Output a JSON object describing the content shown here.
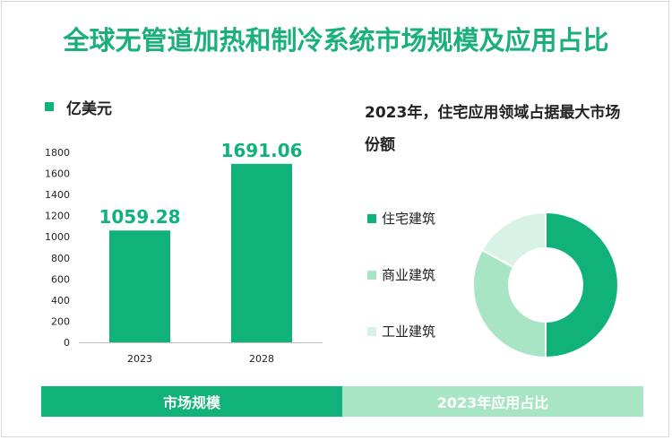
{
  "title": "全球无管道加热和制冷系统市场规模及应用占比",
  "unit_label": "亿美元",
  "pie_title": "2023年，住宅应用领域占据最大市场份额",
  "bottom_left_label": "市场规模",
  "bottom_right_label": "2023年应用占比",
  "colors": {
    "title": "#1bb07a",
    "bar": "#10b27a",
    "value_label": "#10b27a",
    "bottom_left": "#10b27a",
    "bottom_right": "#a8e5c4"
  },
  "chart_data": [
    {
      "type": "bar",
      "title": "",
      "ylabel": "亿美元",
      "categories": [
        "2023",
        "2028"
      ],
      "values": [
        1059.28,
        1691.06
      ],
      "value_labels": [
        "1059.28",
        "1691.06"
      ],
      "ylim": [
        0,
        1800
      ],
      "yticks": [
        0,
        200,
        400,
        600,
        800,
        1000,
        1200,
        1400,
        1600,
        1800
      ],
      "grid": false
    },
    {
      "type": "pie",
      "donut": true,
      "title": "2023年，住宅应用领域占据最大市场份额",
      "labels": [
        "住宅建筑",
        "商业建筑",
        "工业建筑"
      ],
      "values": [
        50,
        33,
        17
      ],
      "colors": [
        "#10b27a",
        "#a8e5c4",
        "#d8f3e6"
      ],
      "legend": "left"
    }
  ]
}
